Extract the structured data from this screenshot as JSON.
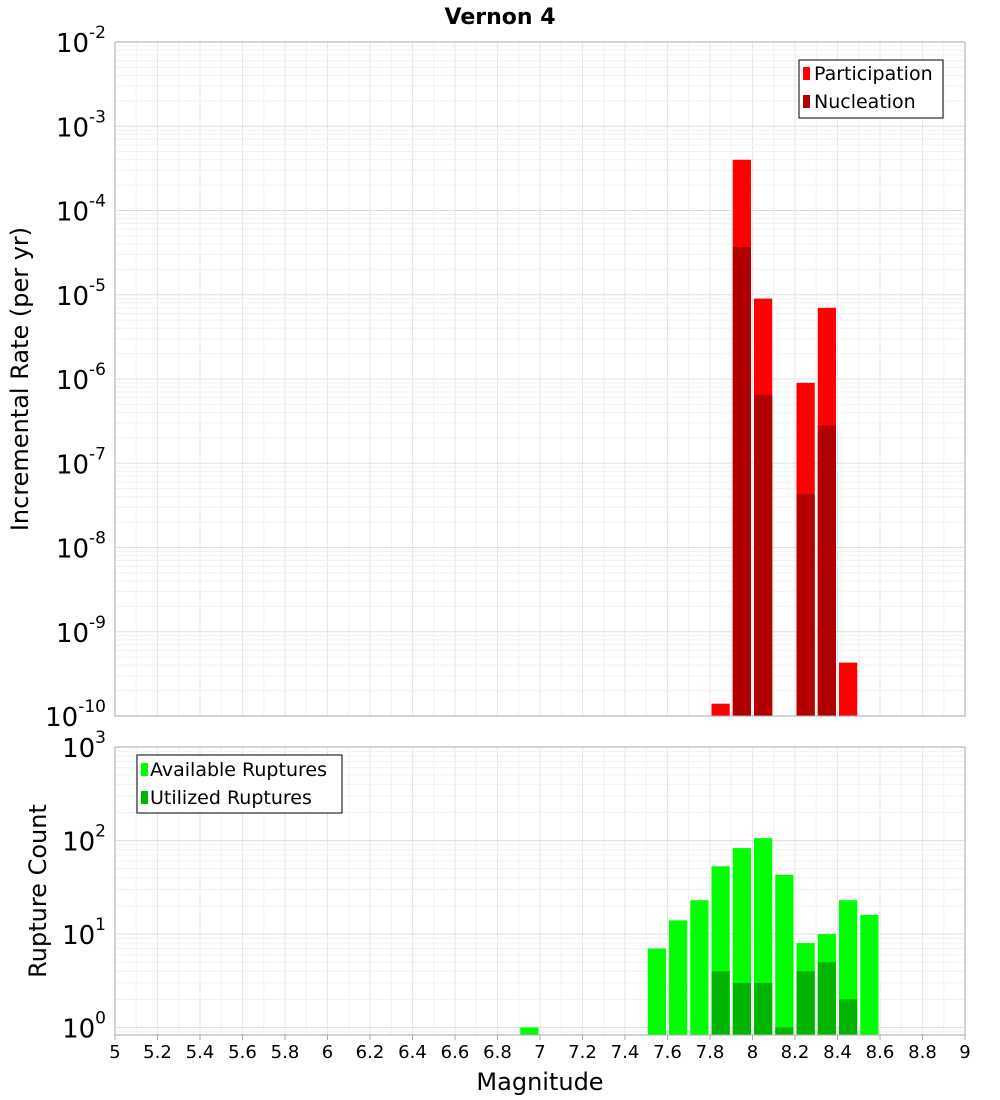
{
  "chart_data": [
    {
      "type": "bar",
      "title": "Vernon 4",
      "ylabel": "Incremental Rate (per yr)",
      "y_scale": "log",
      "ylim_exp": [
        -10,
        -2
      ],
      "y_tick_base": "10",
      "y_tick_exponents": [
        "-2",
        "-3",
        "-4",
        "-5",
        "-6",
        "-7",
        "-8",
        "-9",
        "-10"
      ],
      "grid": true,
      "legend_position": "top-right",
      "bin_width": 0.1,
      "series": [
        {
          "name": "Participation",
          "color": "#ff0000",
          "x": [
            7.85,
            7.95,
            8.05,
            8.25,
            8.35,
            8.45
          ],
          "values": [
            1.4e-10,
            0.0004,
            9e-06,
            9e-07,
            7e-06,
            4.3e-10
          ]
        },
        {
          "name": "Nucleation",
          "color": "#b00000",
          "x": [
            7.95,
            8.05,
            8.25,
            8.35
          ],
          "values": [
            3.7e-05,
            6.5e-07,
            4.3e-08,
            2.8e-07
          ]
        }
      ]
    },
    {
      "type": "bar",
      "xlabel": "Magnitude",
      "ylabel": "Rupture Count",
      "y_scale": "log",
      "ylim_exp": [
        -0.08,
        3
      ],
      "y_tick_base": "10",
      "y_tick_exponents": [
        "3",
        "2",
        "1",
        "0"
      ],
      "xlim": [
        5,
        9
      ],
      "x_ticks": [
        "5",
        "5.2",
        "5.4",
        "5.6",
        "5.8",
        "6",
        "6.2",
        "6.4",
        "6.6",
        "6.8",
        "7",
        "7.2",
        "7.4",
        "7.6",
        "7.8",
        "8",
        "8.2",
        "8.4",
        "8.6",
        "8.8",
        "9"
      ],
      "grid": true,
      "legend_position": "top-left",
      "bin_width": 0.1,
      "series": [
        {
          "name": "Available Ruptures",
          "color": "#00ff00",
          "x": [
            6.95,
            7.55,
            7.65,
            7.75,
            7.85,
            7.95,
            8.05,
            8.15,
            8.25,
            8.35,
            8.45,
            8.55
          ],
          "values": [
            1,
            7,
            14,
            23,
            53,
            83,
            106,
            43,
            8,
            10,
            23,
            16
          ]
        },
        {
          "name": "Utilized Ruptures",
          "color": "#00b400",
          "x": [
            7.85,
            7.95,
            8.05,
            8.15,
            8.25,
            8.35,
            8.45
          ],
          "values": [
            4,
            3,
            3,
            1,
            4,
            5,
            2
          ]
        }
      ]
    }
  ]
}
